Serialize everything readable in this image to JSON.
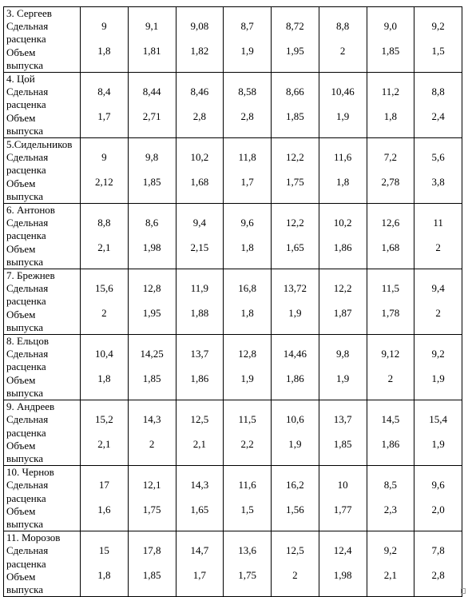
{
  "labels": {
    "rate": "Сдельная расценка",
    "rate_line1": "Сдельная",
    "rate_line2": "расценка",
    "volume_line1": "Объем",
    "volume_line2": "выпуска"
  },
  "rows": [
    {
      "name": "3. Сергеев",
      "rate": [
        "9",
        "9,1",
        "9,08",
        "8,7",
        "8,72",
        "8,8",
        "9,0",
        "9,2"
      ],
      "volume": [
        "1,8",
        "1,81",
        "1,82",
        "1,9",
        "1,95",
        "2",
        "1,85",
        "1,5"
      ]
    },
    {
      "name": "4. Цой",
      "rate": [
        "8,4",
        "8,44",
        "8,46",
        "8,58",
        "8,66",
        "10,46",
        "11,2",
        "8,8"
      ],
      "volume": [
        "1,7",
        "2,71",
        "2,8",
        "2,8",
        "1,85",
        "1,9",
        "1,8",
        "2,4"
      ]
    },
    {
      "name": "5.Сидельников",
      "rate": [
        "9",
        "9,8",
        "10,2",
        "11,8",
        "12,2",
        "11,6",
        "7,2",
        "5,6"
      ],
      "volume": [
        "2,12",
        "1,85",
        "1,68",
        "1,7",
        "1,75",
        "1,8",
        "2,78",
        "3,8"
      ]
    },
    {
      "name": "6. Антонов",
      "rate": [
        "8,8",
        "8,6",
        "9,4",
        "9,6",
        "12,2",
        "10,2",
        "12,6",
        "11"
      ],
      "volume": [
        "2,1",
        "1,98",
        "2,15",
        "1,8",
        "1,65",
        "1,86",
        "1,68",
        "2"
      ]
    },
    {
      "name": "7. Брежнев",
      "rate": [
        "15,6",
        "12,8",
        "11,9",
        "16,8",
        "13,72",
        "12,2",
        "11,5",
        "9,4"
      ],
      "volume": [
        "2",
        "1,95",
        "1,88",
        "1,8",
        "1,9",
        "1,87",
        "1,78",
        "2"
      ]
    },
    {
      "name": "8. Ельцов",
      "rate": [
        "10,4",
        "14,25",
        "13,7",
        "12,8",
        "14,46",
        "9,8",
        "9,12",
        "9,2"
      ],
      "volume": [
        "1,8",
        "1,85",
        "1,86",
        "1,9",
        "1,86",
        "1,9",
        "2",
        "1,9"
      ]
    },
    {
      "name": "9. Андреев",
      "rate": [
        "15,2",
        "14,3",
        "12,5",
        "11,5",
        "10,6",
        "13,7",
        "14,5",
        "15,4"
      ],
      "volume": [
        "2,1",
        "2",
        "2,1",
        "2,2",
        "1,9",
        "1,85",
        "1,86",
        "1,9"
      ]
    },
    {
      "name": "10. Чернов",
      "rate": [
        "17",
        "12,1",
        "14,3",
        "11,6",
        "16,2",
        "10",
        "8,5",
        "9,6"
      ],
      "volume": [
        "1,6",
        "1,75",
        "1,65",
        "1,5",
        "1,56",
        "1,77",
        "2,3",
        "2,0"
      ]
    },
    {
      "name": "11. Морозов",
      "rate": [
        "15",
        "17,8",
        "14,7",
        "13,6",
        "12,5",
        "12,4",
        "9,2",
        "7,8"
      ],
      "volume": [
        "1,8",
        "1,85",
        "1,7",
        "1,75",
        "2",
        "1,98",
        "2,1",
        "2,8"
      ]
    }
  ]
}
